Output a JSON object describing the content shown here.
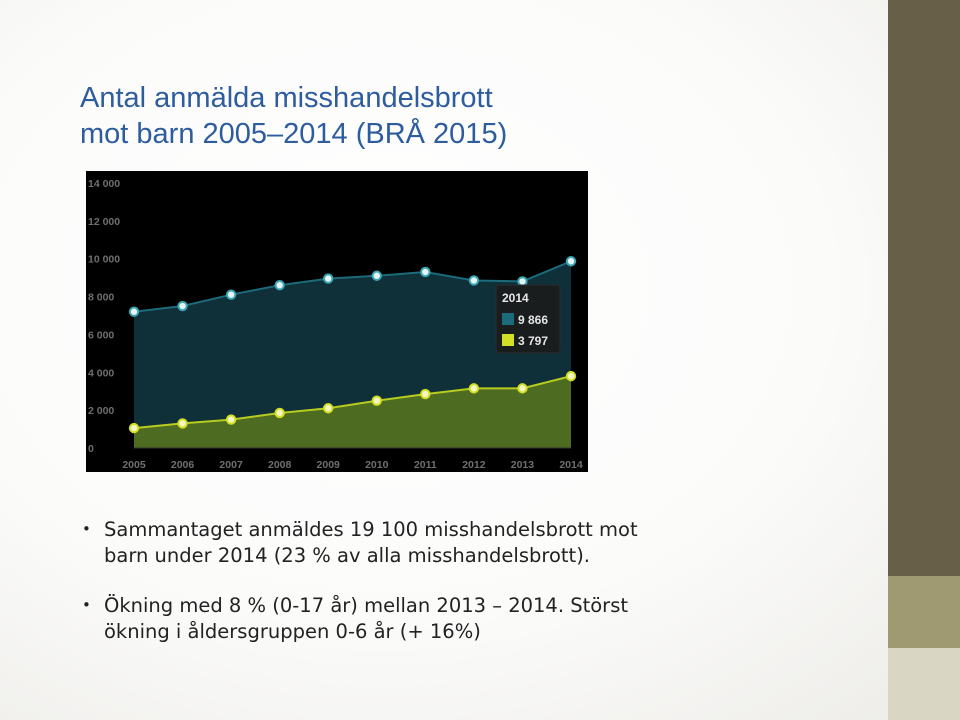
{
  "slide": {
    "title_lines": [
      "Antal anmälda misshandelsbrott",
      "mot barn 2005–2014 (BRÅ 2015)"
    ],
    "bullets": [
      {
        "lines": [
          "Sammantaget anmäldes 19 100 misshandelsbrott mot",
          "barn under 2014 (23 % av alla misshandelsbrott)."
        ]
      },
      {
        "lines": [
          "Ökning med 8 % (0-17 år) mellan 2013 – 2014. Störst",
          "ökning i åldersgruppen 0-6 år (+ 16%)"
        ]
      }
    ]
  },
  "colors": {
    "title": "#2d5c9f",
    "chart_background": "#000000",
    "series_total_fill": "#0f2f39",
    "series_total_line": "#1b6b7b",
    "series_young_fill": "#4e6b22",
    "series_young_line": "#b7cc1e",
    "marker_total": "#3aa6b4",
    "marker_young": "#d3df24",
    "strip_dark": "#675f48",
    "strip_accent": "#a09a73",
    "strip_light": "#d9d6c4"
  },
  "chart_data": {
    "type": "area",
    "x": [
      2005,
      2006,
      2007,
      2008,
      2009,
      2010,
      2011,
      2012,
      2013,
      2014
    ],
    "x_tick_labels": [
      "2005",
      "2006",
      "2007",
      "2008",
      "2009",
      "2010",
      "2011",
      "2012",
      "2013",
      "2014"
    ],
    "y_tick_labels": [
      "0",
      "2 000",
      "4 000",
      "6 000",
      "8 000",
      "10 000",
      "12 000",
      "14 000"
    ],
    "y_ticks": [
      0,
      2000,
      4000,
      6000,
      8000,
      10000,
      12000,
      14000
    ],
    "ylim": [
      0,
      14000
    ],
    "series": [
      {
        "values": [
          7200,
          7500,
          8100,
          8600,
          8950,
          9100,
          9300,
          8850,
          8800,
          9866
        ]
      },
      {
        "values": [
          1050,
          1300,
          1500,
          1850,
          2100,
          2500,
          2850,
          3150,
          3150,
          3797
        ]
      }
    ],
    "tooltip": {
      "year_label": "2014",
      "rows": [
        {
          "value_label": "9 866"
        },
        {
          "value_label": "3 797"
        }
      ]
    }
  }
}
